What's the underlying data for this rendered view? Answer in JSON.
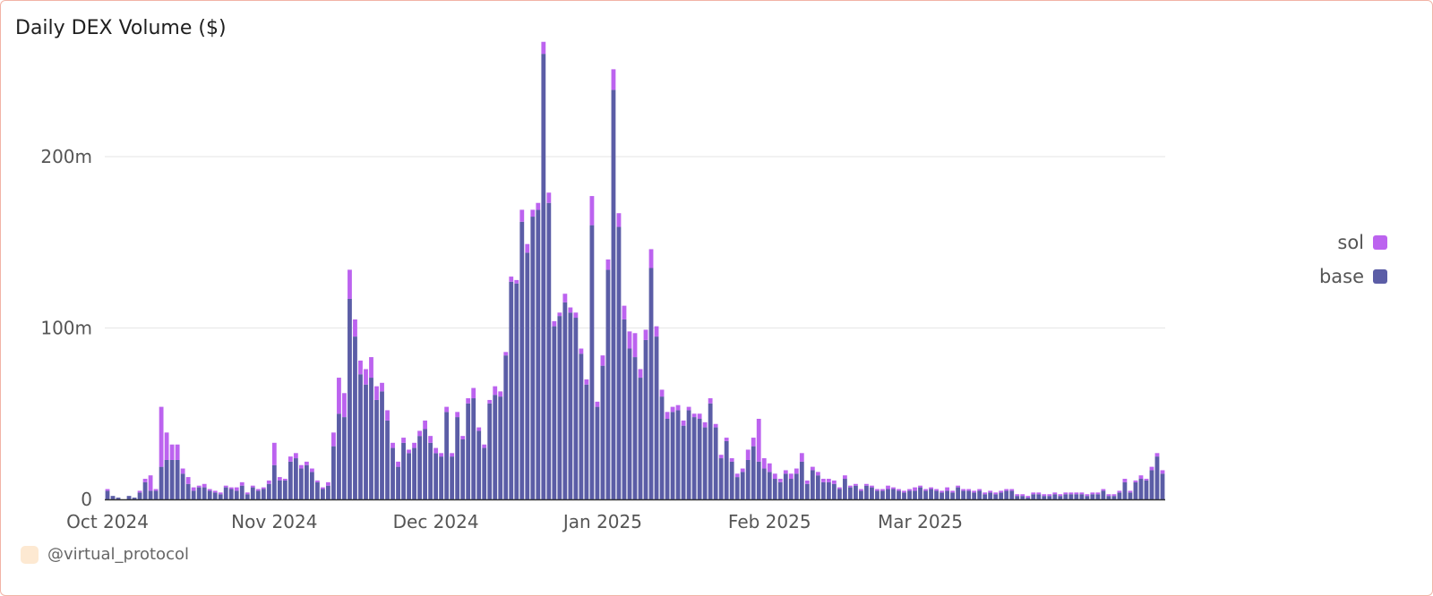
{
  "title": "Daily DEX Volume ($)",
  "footer": {
    "handle": "@virtual_protocol",
    "icon": "account-avatar-icon"
  },
  "colors": {
    "base": "#5b5da6",
    "sol": "#bc63ef",
    "grid": "#e6e6e6",
    "axis": "#333333"
  },
  "chart_data": {
    "type": "bar",
    "stacked": true,
    "ylim": [
      0,
      270
    ],
    "y_unit": "m",
    "y_ticks": [
      0,
      100,
      200
    ],
    "y_tick_labels": [
      "0",
      "100m",
      "200m"
    ],
    "x_tick_labels": [
      "Oct 2024",
      "Nov 2024",
      "Dec 2024",
      "Jan 2025",
      "Feb 2025",
      "Mar 2025"
    ],
    "x_tick_days": [
      0,
      31,
      61,
      92,
      123,
      151
    ],
    "legend": [
      "sol",
      "base"
    ],
    "legend_position": "right",
    "grid": true,
    "series": [
      {
        "name": "base",
        "values": [
          5,
          2,
          1,
          0,
          2,
          1,
          4,
          10,
          5,
          5,
          19,
          23,
          23,
          23,
          15,
          9,
          5,
          7,
          7,
          5,
          4,
          3,
          7,
          6,
          5,
          8,
          3,
          7,
          5,
          6,
          9,
          20,
          11,
          11,
          22,
          24,
          18,
          20,
          16,
          10,
          6,
          8,
          31,
          50,
          48,
          117,
          95,
          73,
          67,
          71,
          58,
          63,
          46,
          30,
          19,
          33,
          27,
          30,
          37,
          41,
          33,
          27,
          25,
          51,
          25,
          48,
          35,
          56,
          59,
          40,
          30,
          56,
          61,
          60,
          84,
          127,
          126,
          162,
          144,
          165,
          169,
          260,
          173,
          101,
          107,
          115,
          109,
          106,
          85,
          67,
          160,
          54,
          78,
          134,
          239,
          159,
          105,
          88,
          83,
          71,
          93,
          135,
          95,
          60,
          47,
          51,
          52,
          43,
          52,
          48,
          47,
          42,
          56,
          42,
          24,
          34,
          22,
          13,
          16,
          23,
          31,
          22,
          18,
          16,
          12,
          10,
          15,
          12,
          15,
          22,
          9,
          17,
          14,
          10,
          10,
          9,
          6,
          12,
          7,
          8,
          5,
          8,
          7,
          5,
          5,
          6,
          6,
          5,
          4,
          5,
          5,
          7,
          5,
          6,
          5,
          4,
          5,
          4,
          7,
          5,
          5,
          4,
          5,
          3,
          4,
          3,
          4,
          5,
          5,
          2,
          2,
          1,
          3,
          3,
          2,
          2,
          3,
          2,
          3,
          3,
          3,
          3,
          2,
          3,
          3,
          5,
          2,
          2,
          4,
          10,
          4,
          10,
          12,
          11,
          17,
          25,
          15
        ],
        "name_display": "base"
      },
      {
        "name": "sol",
        "values": [
          1,
          0,
          0,
          0,
          0,
          0,
          1,
          2,
          9,
          1,
          35,
          16,
          9,
          9,
          3,
          4,
          2,
          1,
          2,
          1,
          1,
          1,
          1,
          1,
          2,
          2,
          1,
          1,
          1,
          1,
          2,
          13,
          2,
          1,
          3,
          3,
          2,
          2,
          2,
          1,
          1,
          2,
          8,
          21,
          14,
          17,
          10,
          8,
          9,
          12,
          8,
          5,
          6,
          3,
          3,
          3,
          2,
          3,
          3,
          5,
          4,
          3,
          2,
          3,
          2,
          3,
          2,
          3,
          6,
          2,
          2,
          2,
          5,
          3,
          2,
          3,
          2,
          7,
          5,
          4,
          4,
          7,
          6,
          3,
          2,
          5,
          3,
          3,
          3,
          3,
          17,
          3,
          6,
          6,
          12,
          8,
          8,
          10,
          14,
          5,
          6,
          11,
          6,
          4,
          4,
          3,
          3,
          3,
          2,
          2,
          3,
          3,
          3,
          2,
          2,
          2,
          2,
          2,
          2,
          6,
          5,
          25,
          6,
          5,
          3,
          2,
          2,
          3,
          3,
          5,
          2,
          2,
          2,
          2,
          2,
          2,
          1,
          2,
          1,
          1,
          1,
          1,
          1,
          1,
          1,
          2,
          1,
          1,
          1,
          1,
          2,
          1,
          1,
          1,
          1,
          1,
          2,
          1,
          1,
          1,
          1,
          1,
          1,
          1,
          1,
          1,
          1,
          1,
          1,
          1,
          1,
          1,
          1,
          1,
          1,
          1,
          1,
          1,
          1,
          1,
          1,
          1,
          1,
          1,
          1,
          1,
          1,
          1,
          1,
          2,
          1,
          1,
          2,
          1,
          2,
          2,
          2
        ]
      }
    ]
  }
}
